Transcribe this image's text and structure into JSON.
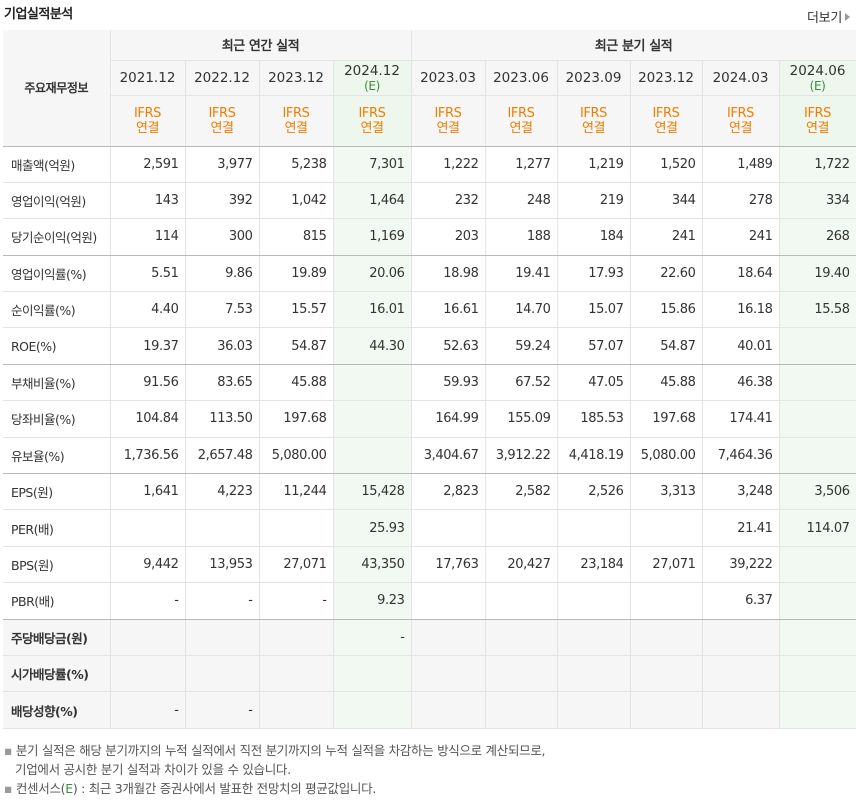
{
  "header": {
    "title": "기업실적분석",
    "more_label": "더보기"
  },
  "table": {
    "corner_label": "주요재무정보",
    "annual_group": "최근 연간 실적",
    "quarter_group": "최근 분기 실적",
    "columns": [
      {
        "date": "2021.12",
        "est": "",
        "ifrs": "IFRS",
        "basis": "연결"
      },
      {
        "date": "2022.12",
        "est": "",
        "ifrs": "IFRS",
        "basis": "연결"
      },
      {
        "date": "2023.12",
        "est": "",
        "ifrs": "IFRS",
        "basis": "연결"
      },
      {
        "date": "2024.12",
        "est": "(E)",
        "ifrs": "IFRS",
        "basis": "연결"
      },
      {
        "date": "2023.03",
        "est": "",
        "ifrs": "IFRS",
        "basis": "연결"
      },
      {
        "date": "2023.06",
        "est": "",
        "ifrs": "IFRS",
        "basis": "연결"
      },
      {
        "date": "2023.09",
        "est": "",
        "ifrs": "IFRS",
        "basis": "연결"
      },
      {
        "date": "2023.12",
        "est": "",
        "ifrs": "IFRS",
        "basis": "연결"
      },
      {
        "date": "2024.03",
        "est": "",
        "ifrs": "IFRS",
        "basis": "연결"
      },
      {
        "date": "2024.06",
        "est": "(E)",
        "ifrs": "IFRS",
        "basis": "연결"
      }
    ],
    "rows": [
      {
        "label": "매출액(억원)",
        "values": [
          "2,591",
          "3,977",
          "5,238",
          "7,301",
          "1,222",
          "1,277",
          "1,219",
          "1,520",
          "1,489",
          "1,722"
        ]
      },
      {
        "label": "영업이익(억원)",
        "values": [
          "143",
          "392",
          "1,042",
          "1,464",
          "232",
          "248",
          "219",
          "344",
          "278",
          "334"
        ]
      },
      {
        "label": "당기순이익(억원)",
        "values": [
          "114",
          "300",
          "815",
          "1,169",
          "203",
          "188",
          "184",
          "241",
          "241",
          "268"
        ]
      },
      {
        "label": "영업이익률(%)",
        "values": [
          "5.51",
          "9.86",
          "19.89",
          "20.06",
          "18.98",
          "19.41",
          "17.93",
          "22.60",
          "18.64",
          "19.40"
        ]
      },
      {
        "label": "순이익률(%)",
        "values": [
          "4.40",
          "7.53",
          "15.57",
          "16.01",
          "16.61",
          "14.70",
          "15.07",
          "15.86",
          "16.18",
          "15.58"
        ]
      },
      {
        "label": "ROE(%)",
        "values": [
          "19.37",
          "36.03",
          "54.87",
          "44.30",
          "52.63",
          "59.24",
          "57.07",
          "54.87",
          "40.01",
          ""
        ]
      },
      {
        "label": "부채비율(%)",
        "values": [
          "91.56",
          "83.65",
          "45.88",
          "",
          "59.93",
          "67.52",
          "47.05",
          "45.88",
          "46.38",
          ""
        ]
      },
      {
        "label": "당좌비율(%)",
        "values": [
          "104.84",
          "113.50",
          "197.68",
          "",
          "164.99",
          "155.09",
          "185.53",
          "197.68",
          "174.41",
          ""
        ]
      },
      {
        "label": "유보율(%)",
        "values": [
          "1,736.56",
          "2,657.48",
          "5,080.00",
          "",
          "3,404.67",
          "3,912.22",
          "4,418.19",
          "5,080.00",
          "7,464.36",
          ""
        ]
      },
      {
        "label": "EPS(원)",
        "values": [
          "1,641",
          "4,223",
          "11,244",
          "15,428",
          "2,823",
          "2,582",
          "2,526",
          "3,313",
          "3,248",
          "3,506"
        ]
      },
      {
        "label": "PER(배)",
        "values": [
          "",
          "",
          "",
          "25.93",
          "",
          "",
          "",
          "",
          "21.41",
          "114.07"
        ]
      },
      {
        "label": "BPS(원)",
        "values": [
          "9,442",
          "13,953",
          "27,071",
          "43,350",
          "17,763",
          "20,427",
          "23,184",
          "27,071",
          "39,222",
          ""
        ]
      },
      {
        "label": "PBR(배)",
        "values": [
          "-",
          "-",
          "-",
          "9.23",
          "",
          "",
          "",
          "",
          "6.37",
          ""
        ]
      },
      {
        "label": "주당배당금(원)",
        "values": [
          "",
          "",
          "",
          "-",
          "",
          "",
          "",
          "",
          "",
          ""
        ]
      },
      {
        "label": "시가배당률(%)",
        "values": [
          "",
          "",
          "",
          "",
          "",
          "",
          "",
          "",
          "",
          ""
        ]
      },
      {
        "label": "배당성향(%)",
        "values": [
          "-",
          "-",
          "",
          "",
          "",
          "",
          "",
          "",
          "",
          ""
        ]
      }
    ]
  },
  "notes": {
    "line1": "분기 실적은 해당 분기까지의 누적 실적에서 직전 분기까지의 누적 실적을 차감하는 방식으로 계산되므로,",
    "line2": "기업에서 공시한 분기 실적과 차이가 있을 수 있습니다.",
    "line3_prefix": "컨센서스(",
    "line3_e": "E",
    "line3_suffix": ") : 최근 3개월간 증권사에서 발표한 전망치의 평균값입니다."
  }
}
